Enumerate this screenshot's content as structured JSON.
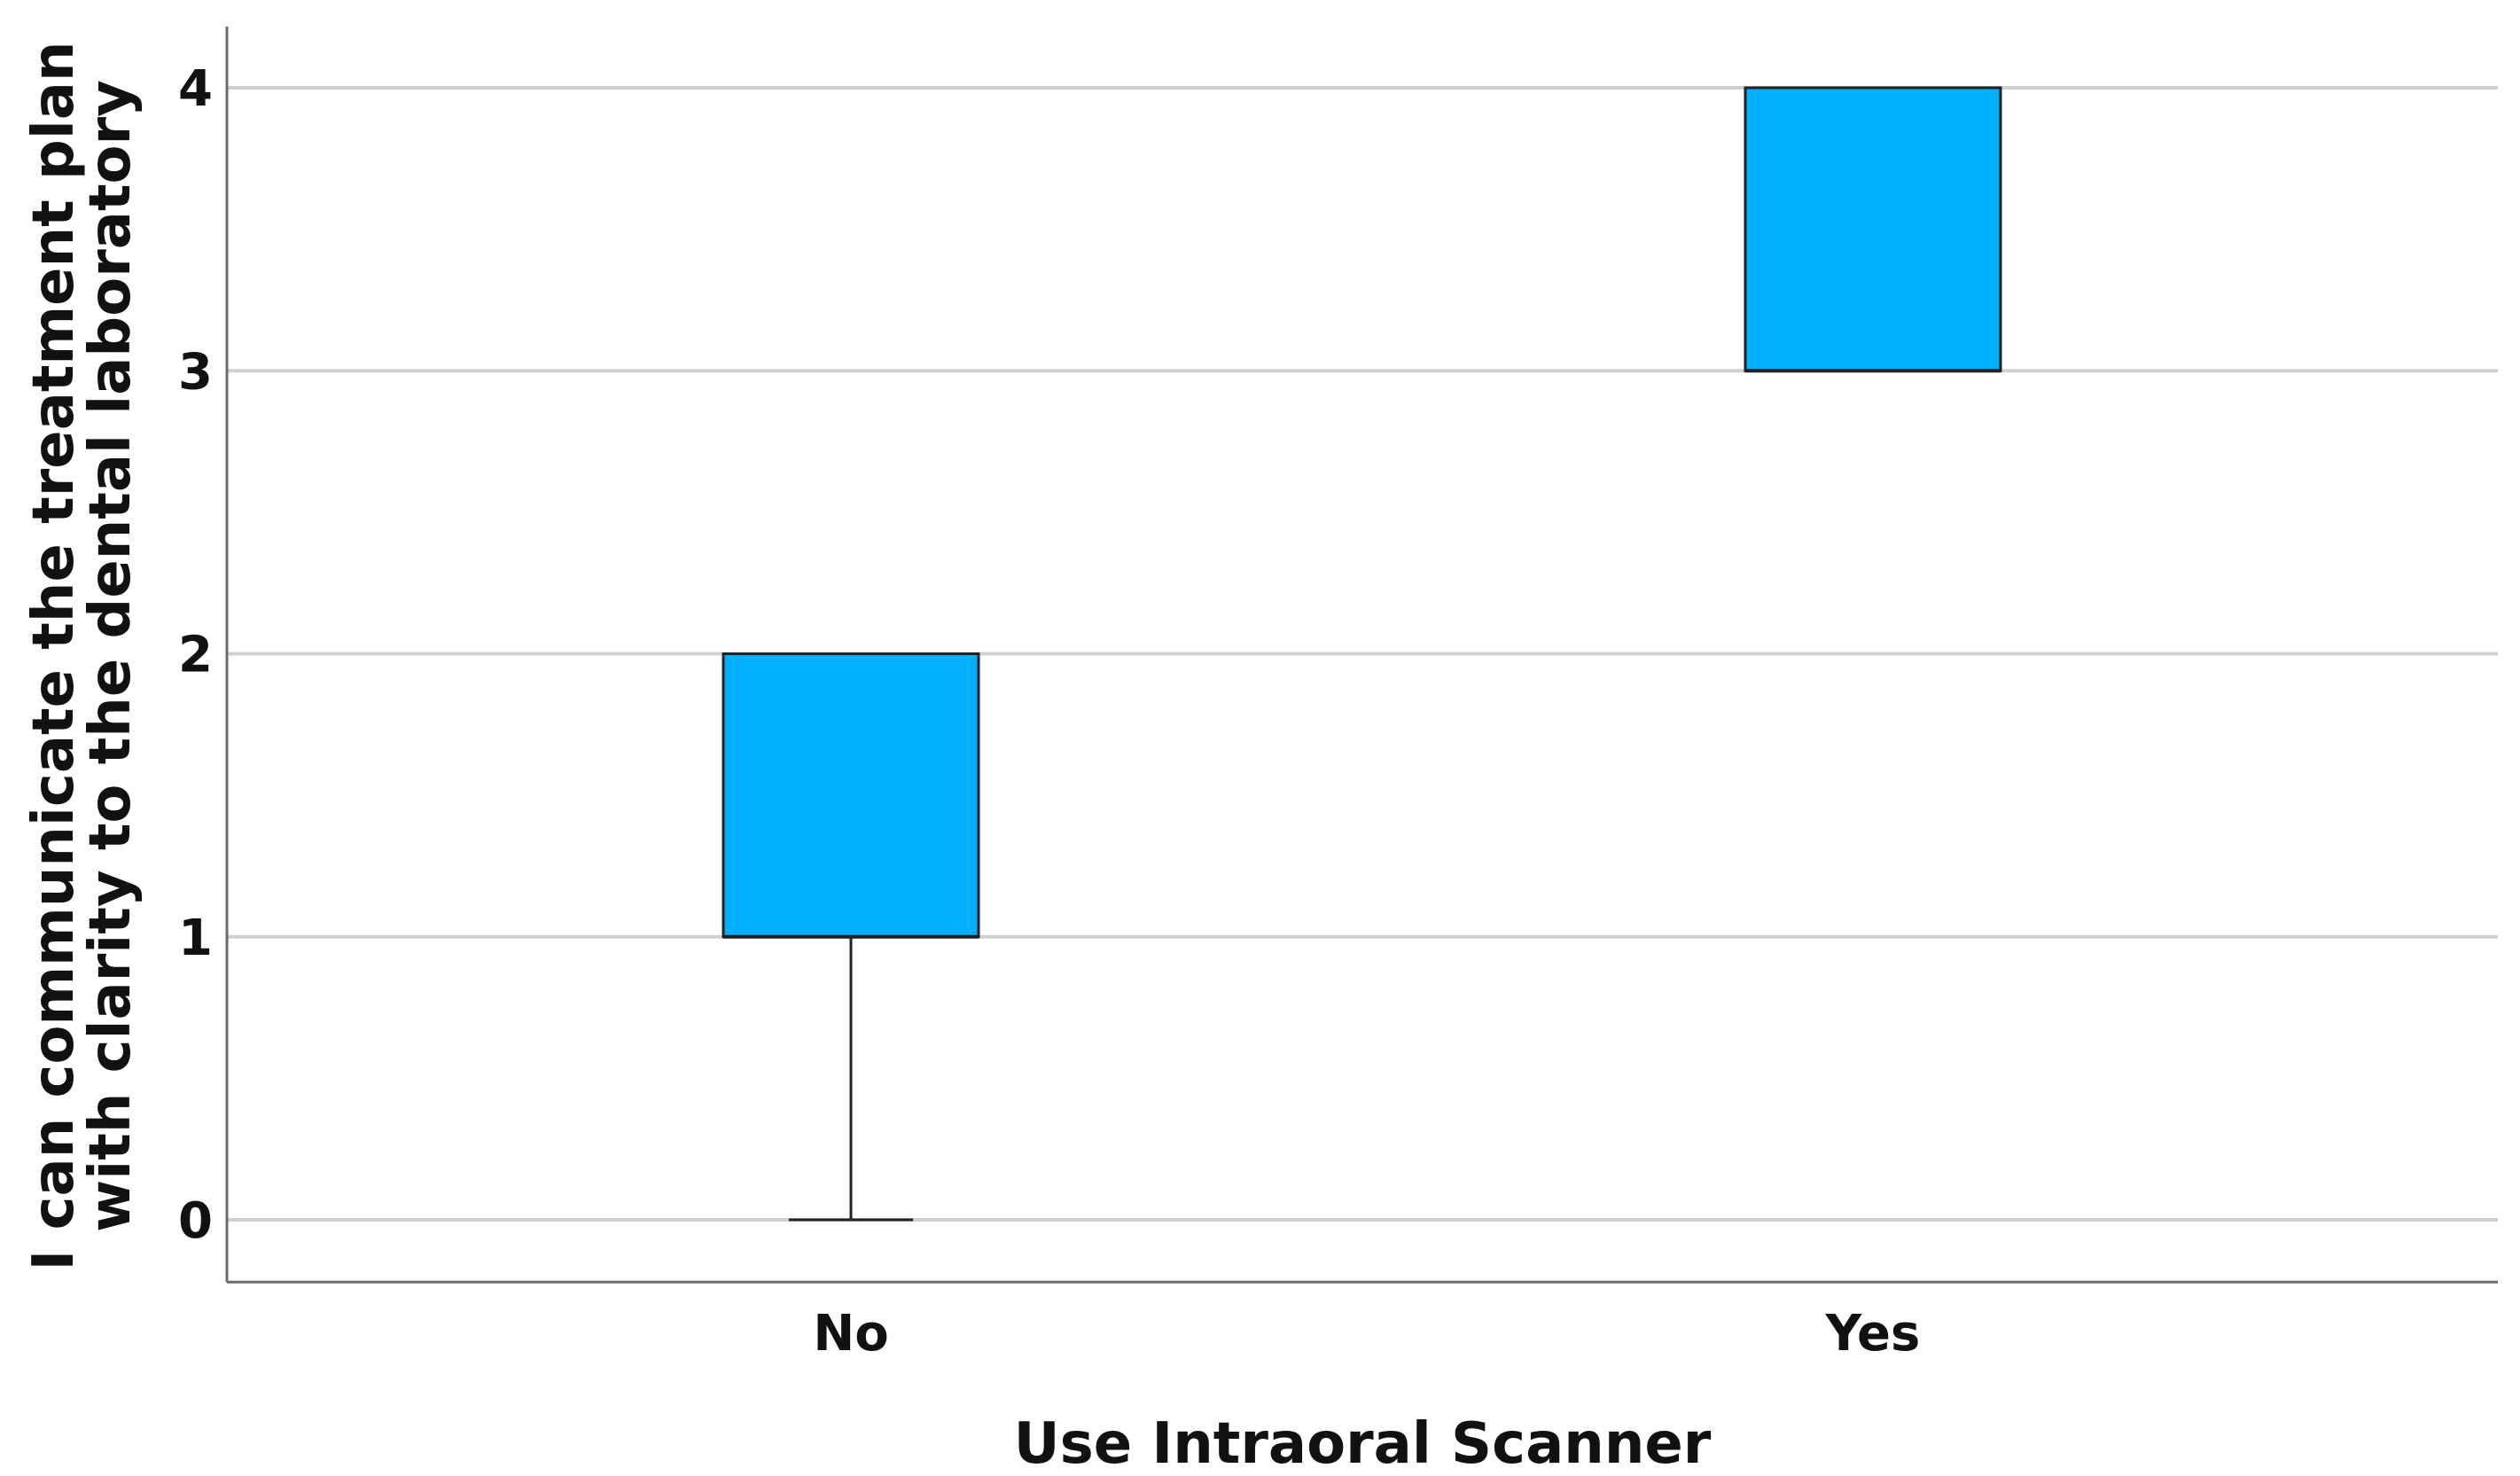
{
  "chart_data": {
    "type": "box",
    "title": "",
    "xlabel": "Use Intraoral Scanner",
    "ylabel_lines": [
      "I can communicate the treatment plan",
      "with clarity to the dental laboratory"
    ],
    "categories": [
      "No",
      "Yes"
    ],
    "boxes": [
      {
        "category": "No",
        "min": 0,
        "q1": 1,
        "median": 1,
        "q3": 2,
        "max": 2
      },
      {
        "category": "Yes",
        "min": 3,
        "q1": 3,
        "median": 3,
        "q3": 4,
        "max": 4
      }
    ],
    "ylim": [
      -0.22,
      4.22
    ],
    "yticks": [
      0,
      1,
      2,
      3,
      4
    ],
    "grid": true,
    "box_color": "#00b0ff"
  }
}
